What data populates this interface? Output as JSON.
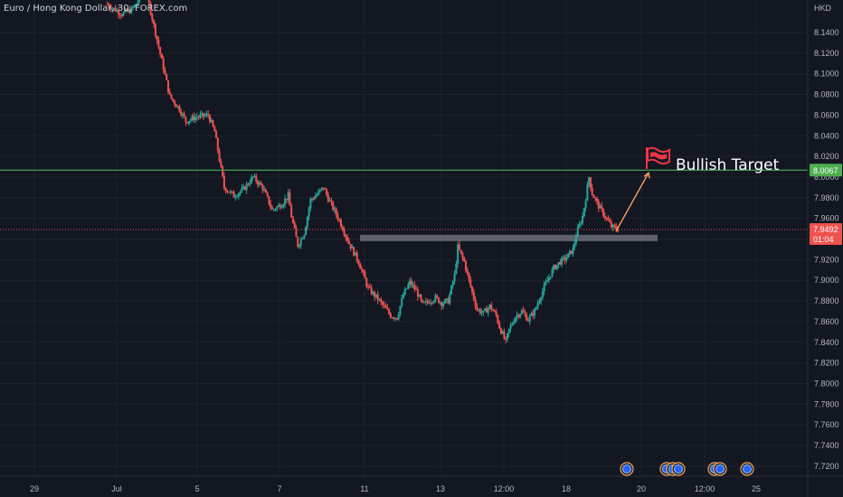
{
  "header": {
    "title": "Euro / Hong Kong Dollar, 30, FOREX.com",
    "currency": "HKD"
  },
  "colors": {
    "background": "#131722",
    "grid": "#1e222d",
    "up_candle": "#26a69a",
    "down_candle": "#ef5350",
    "target_line": "#4caf50",
    "price_line": "#ef5350",
    "support_zone": "#787b86",
    "arrow": "#f7a35c",
    "flag": "#f23645",
    "axis_text": "#b2b5be"
  },
  "icons": {
    "target_flag": "flag-icon",
    "event_markers": "calendar-event-icon"
  },
  "chart_data": {
    "type": "candlestick",
    "symbol": "Euro / Hong Kong Dollar",
    "timeframe": "30",
    "source": "FOREX.com",
    "y_axis": {
      "ticks": [
        "8.1400",
        "8.1200",
        "8.1000",
        "8.0800",
        "8.0600",
        "8.0400",
        "8.0200",
        "8.0000",
        "7.9800",
        "7.9600",
        "7.9400",
        "7.9200",
        "7.9000",
        "7.8800",
        "7.8600",
        "7.8400",
        "7.8200",
        "7.8000",
        "7.7800",
        "7.7600",
        "7.7400",
        "7.7200"
      ],
      "ylim": [
        7.705,
        8.165
      ]
    },
    "x_axis": {
      "ticks": [
        "29",
        "Jul",
        "5",
        "7",
        "11",
        "13",
        "12:00",
        "18",
        "20",
        "12:00",
        "25"
      ]
    },
    "price_path": [
      [
        0,
        8.168
      ],
      [
        5,
        8.158
      ],
      [
        8,
        8.162
      ],
      [
        10,
        8.17
      ],
      [
        12,
        8.188
      ],
      [
        20,
        8.078
      ],
      [
        23,
        8.066
      ],
      [
        25,
        8.054
      ],
      [
        28,
        8.058
      ],
      [
        32,
        8.06
      ],
      [
        34,
        8.044
      ],
      [
        37,
        7.99
      ],
      [
        40,
        7.982
      ],
      [
        43,
        7.988
      ],
      [
        46,
        8.0
      ],
      [
        49,
        7.99
      ],
      [
        52,
        7.968
      ],
      [
        55,
        7.974
      ],
      [
        57,
        7.982
      ],
      [
        58,
        7.962
      ],
      [
        60,
        7.934
      ],
      [
        62,
        7.946
      ],
      [
        64,
        7.978
      ],
      [
        66,
        7.983
      ],
      [
        68,
        7.99
      ],
      [
        70,
        7.976
      ],
      [
        73,
        7.958
      ],
      [
        76,
        7.936
      ],
      [
        79,
        7.918
      ],
      [
        82,
        7.892
      ],
      [
        85,
        7.882
      ],
      [
        87,
        7.874
      ],
      [
        89,
        7.866
      ],
      [
        91,
        7.864
      ],
      [
        93,
        7.886
      ],
      [
        95,
        7.898
      ],
      [
        97,
        7.89
      ],
      [
        99,
        7.876
      ],
      [
        101,
        7.88
      ],
      [
        103,
        7.883
      ],
      [
        105,
        7.878
      ],
      [
        107,
        7.88
      ],
      [
        109,
        7.905
      ],
      [
        110,
        7.932
      ],
      [
        112,
        7.918
      ],
      [
        114,
        7.894
      ],
      [
        116,
        7.872
      ],
      [
        118,
        7.868
      ],
      [
        120,
        7.875
      ],
      [
        122,
        7.866
      ],
      [
        123,
        7.855
      ],
      [
        125,
        7.84
      ],
      [
        126,
        7.852
      ],
      [
        128,
        7.865
      ],
      [
        130,
        7.87
      ],
      [
        132,
        7.862
      ],
      [
        134,
        7.87
      ],
      [
        136,
        7.886
      ],
      [
        138,
        7.9
      ],
      [
        140,
        7.912
      ],
      [
        142,
        7.918
      ],
      [
        144,
        7.922
      ],
      [
        146,
        7.93
      ],
      [
        147,
        7.944
      ],
      [
        149,
        7.962
      ],
      [
        150,
        7.98
      ],
      [
        151,
        8.0
      ],
      [
        152,
        7.984
      ],
      [
        154,
        7.972
      ],
      [
        156,
        7.962
      ],
      [
        158,
        7.952
      ],
      [
        160,
        7.9492
      ]
    ],
    "horizontal_lines": [
      {
        "label": "target",
        "value": 8.0067,
        "style": "solid"
      },
      {
        "label": "last",
        "value": 7.9492,
        "style": "dotted"
      }
    ],
    "support_zone": {
      "value": 7.941
    },
    "price_labels": [
      {
        "text": "8.0067",
        "value": 8.0067
      },
      {
        "text": "7.9492",
        "value": 7.9492,
        "sub": "01:04"
      }
    ],
    "annotation": {
      "text": "Bullish Target",
      "arrow_from": 7.9492,
      "arrow_to": 8.0067
    },
    "grid": true,
    "legend": "none"
  }
}
